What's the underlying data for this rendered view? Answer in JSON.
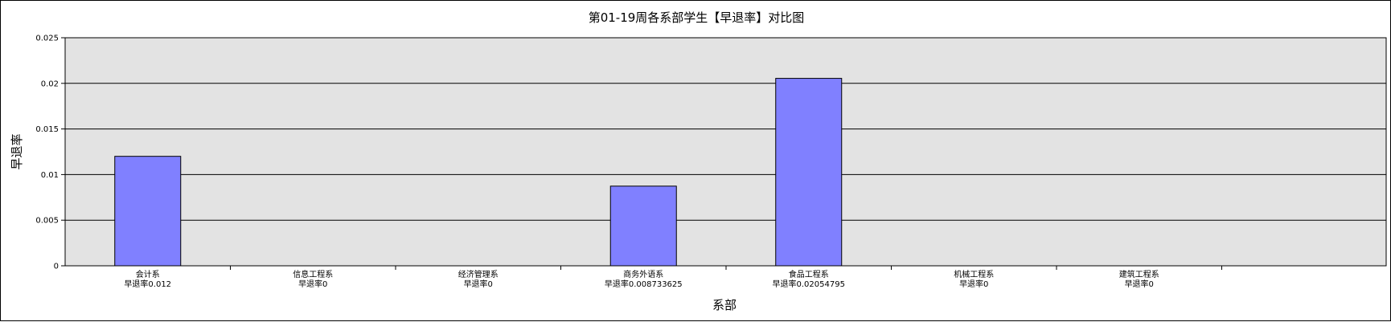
{
  "chart_data": {
    "type": "bar",
    "title": "第01-19周各系部学生【早退率】对比图",
    "xlabel": "系部",
    "ylabel": "早退率",
    "ylim": [
      0,
      0.025
    ],
    "yticks": [
      "0",
      "0.005",
      "0.01",
      "0.015",
      "0.02",
      "0.025"
    ],
    "grid": true,
    "colors": {
      "bar": "#8080ff",
      "plot_bg": "#e3e3e3"
    },
    "categories": [
      "会计系",
      "信息工程系",
      "经济管理系",
      "商务外语系",
      "食品工程系",
      "机械工程系",
      "建筑工程系"
    ],
    "category_sublabels": [
      "早退率0.012",
      "早退率0",
      "早退率0",
      "早退率0.008733625",
      "早退率0.02054795",
      "早退率0",
      "早退率0"
    ],
    "values": [
      0.012,
      0,
      0,
      0.008733625,
      0.02054795,
      0,
      0
    ]
  }
}
